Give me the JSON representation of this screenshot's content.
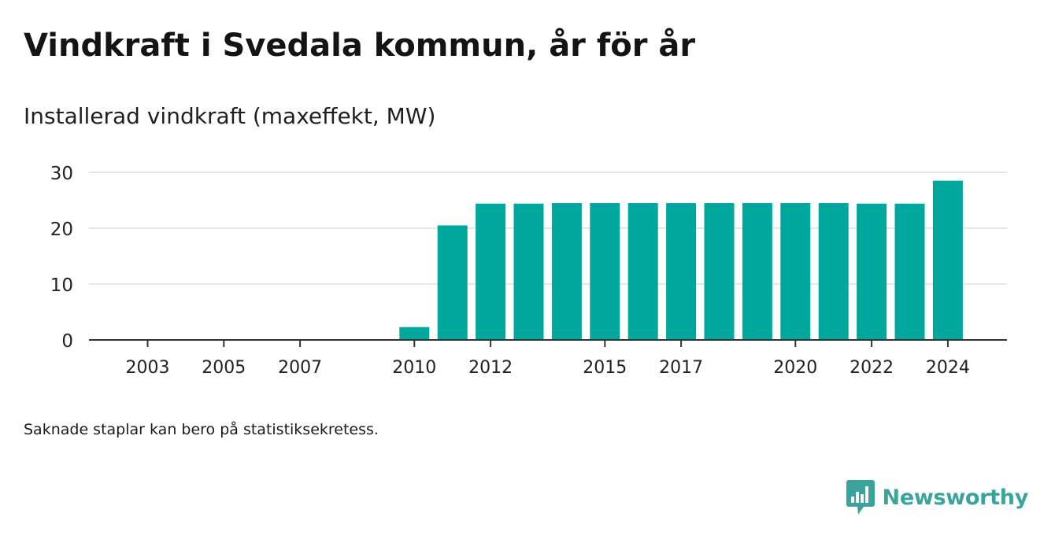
{
  "header": {
    "title": "Vindkraft i Svedala kommun, år för år",
    "subtitle": "Installerad vindkraft (maxeffekt, MW)"
  },
  "footer": {
    "note": "Saknade staplar kan bero på statistiksekretess.",
    "brand": "Newsworthy"
  },
  "colors": {
    "bar": "#00a79d",
    "brand": "#3aa39b",
    "grid": "#dddddd",
    "axis": "#333333"
  },
  "chart_data": {
    "type": "bar",
    "title": "Installerad vindkraft (maxeffekt, MW)",
    "xlabel": "",
    "ylabel": "",
    "categories": [
      "2003",
      "2004",
      "2005",
      "2006",
      "2007",
      "2008",
      "2009",
      "2010",
      "2011",
      "2012",
      "2013",
      "2014",
      "2015",
      "2016",
      "2017",
      "2018",
      "2019",
      "2020",
      "2021",
      "2022",
      "2023",
      "2024"
    ],
    "values": [
      0,
      0,
      0,
      0,
      0,
      0,
      0,
      2.3,
      20.5,
      24.4,
      24.4,
      24.5,
      24.5,
      24.5,
      24.5,
      24.5,
      24.5,
      24.5,
      24.5,
      24.4,
      24.4,
      28.5
    ],
    "x_tick_labels": [
      "2003",
      "2005",
      "2007",
      "2010",
      "2012",
      "2015",
      "2017",
      "2020",
      "2022",
      "2024"
    ],
    "y_ticks": [
      0,
      10,
      20,
      30
    ],
    "ylim": [
      0,
      30
    ],
    "grid": true,
    "legend": "none"
  }
}
